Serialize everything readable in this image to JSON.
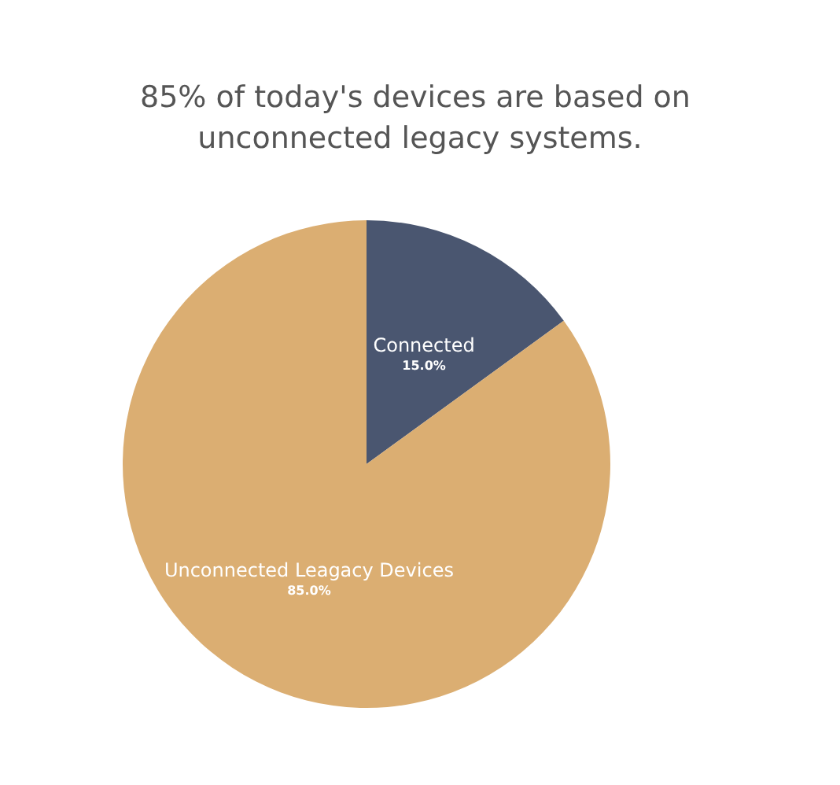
{
  "chart_data": {
    "type": "pie",
    "title": "85% of today's devices are based on unconnected legacy systems.",
    "categories": [
      "Connected",
      "Unconnected Leagacy Devices"
    ],
    "values": [
      15,
      85
    ],
    "colors": [
      "#4a5670",
      "#dbae72"
    ],
    "value_labels": [
      "15.0%",
      "85.0%"
    ],
    "legend": false
  }
}
